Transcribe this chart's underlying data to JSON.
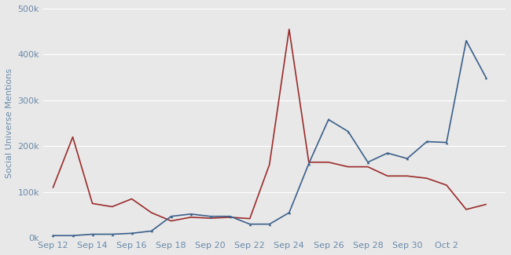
{
  "ylabel": "Social Universe Mentions",
  "ylim": [
    0,
    500000
  ],
  "yticks": [
    0,
    100000,
    200000,
    300000,
    400000,
    500000
  ],
  "ytick_labels": [
    "0k",
    "100k",
    "200k",
    "300k",
    "400k",
    "500k"
  ],
  "red_line": {
    "color": "#9b2b2b",
    "x": [
      11,
      12,
      13,
      14,
      15,
      16,
      17,
      18,
      19,
      20,
      21,
      22,
      23,
      24,
      25,
      26,
      27,
      28,
      29,
      30,
      31,
      32,
      33
    ],
    "y": [
      110000,
      220000,
      75000,
      68000,
      85000,
      55000,
      37000,
      45000,
      43000,
      45000,
      42000,
      160000,
      455000,
      165000,
      165000,
      155000,
      155000,
      135000,
      135000,
      130000,
      115000,
      62000,
      73000
    ]
  },
  "blue_line": {
    "color": "#3a5f8a",
    "x": [
      11,
      12,
      13,
      14,
      15,
      16,
      17,
      18,
      19,
      20,
      21,
      22,
      23,
      24,
      25,
      26,
      27,
      28,
      29,
      30,
      31,
      32,
      33
    ],
    "y": [
      5000,
      5000,
      8000,
      8000,
      10000,
      15000,
      47000,
      52000,
      47000,
      47000,
      30000,
      30000,
      55000,
      162000,
      258000,
      232000,
      165000,
      185000,
      173000,
      210000,
      208000,
      430000,
      350000
    ]
  },
  "xtick_positions": [
    11,
    13,
    15,
    17,
    19,
    21,
    23,
    25,
    27,
    29,
    31,
    33
  ],
  "xtick_labels": [
    "Sep 12",
    "Sep 14",
    "Sep 16",
    "Sep 18",
    "Sep 20",
    "Sep 22",
    "Sep 24",
    "Sep 26",
    "Sep 28",
    "Sep 30",
    "Oct 2",
    ""
  ],
  "bg_color": "#e8e8e8",
  "grid_color": "#ffffff",
  "text_color": "#6a8aaa"
}
